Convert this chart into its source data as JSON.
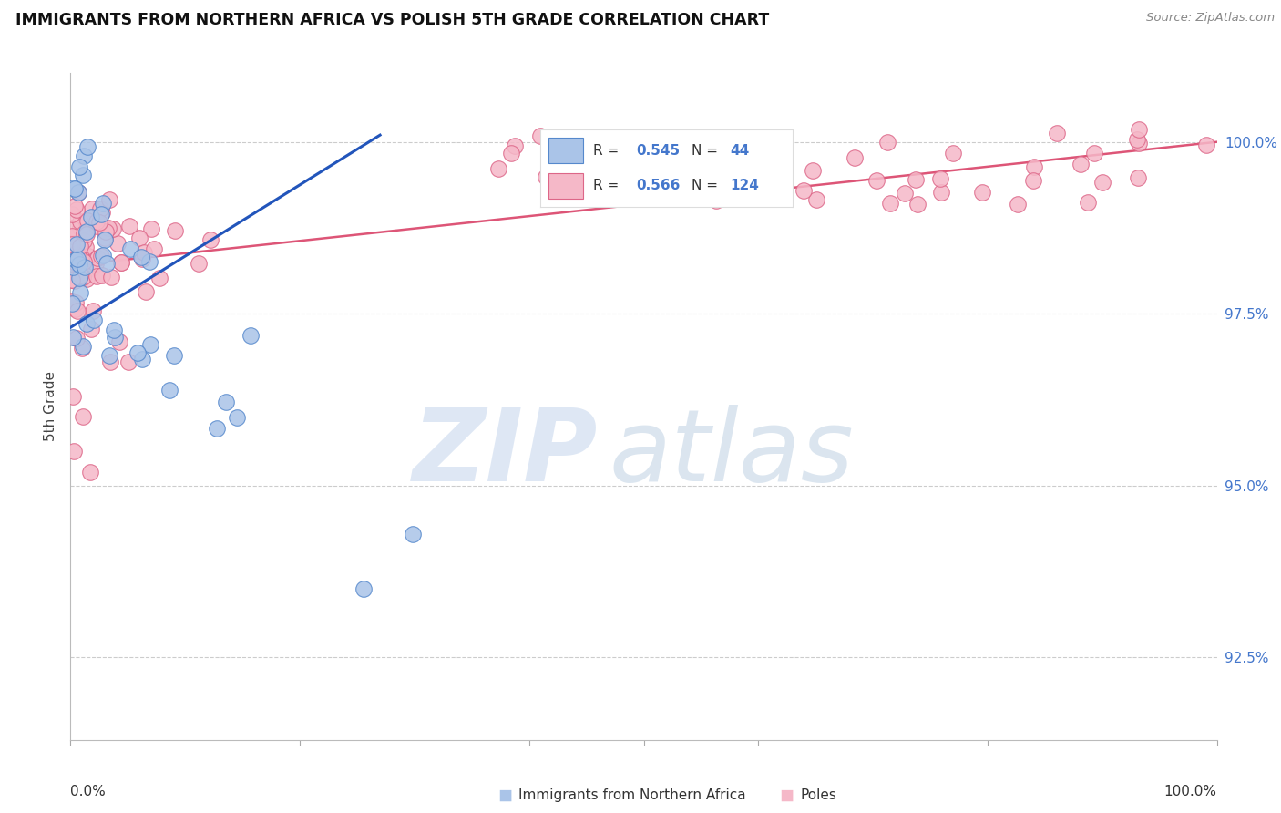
{
  "title": "IMMIGRANTS FROM NORTHERN AFRICA VS POLISH 5TH GRADE CORRELATION CHART",
  "source": "Source: ZipAtlas.com",
  "ylabel": "5th Grade",
  "y_ticks": [
    92.5,
    95.0,
    97.5,
    100.0
  ],
  "y_tick_labels": [
    "92.5%",
    "95.0%",
    "97.5%",
    "100.0%"
  ],
  "xlim": [
    0.0,
    1.0
  ],
  "ylim": [
    91.3,
    101.0
  ],
  "blue_color": "#aac4e8",
  "pink_color": "#f5b8c8",
  "blue_edge_color": "#5588cc",
  "pink_edge_color": "#dd6688",
  "blue_line_color": "#2255bb",
  "pink_line_color": "#dd5577",
  "legend_r_blue": "0.545",
  "legend_n_blue": "44",
  "legend_r_pink": "0.566",
  "legend_n_pink": "124",
  "watermark_zip_color": "#c8d8ee",
  "watermark_atlas_color": "#b8cce0",
  "bottom_legend_blue": "Immigrants from Northern Africa",
  "bottom_legend_pink": "Poles"
}
